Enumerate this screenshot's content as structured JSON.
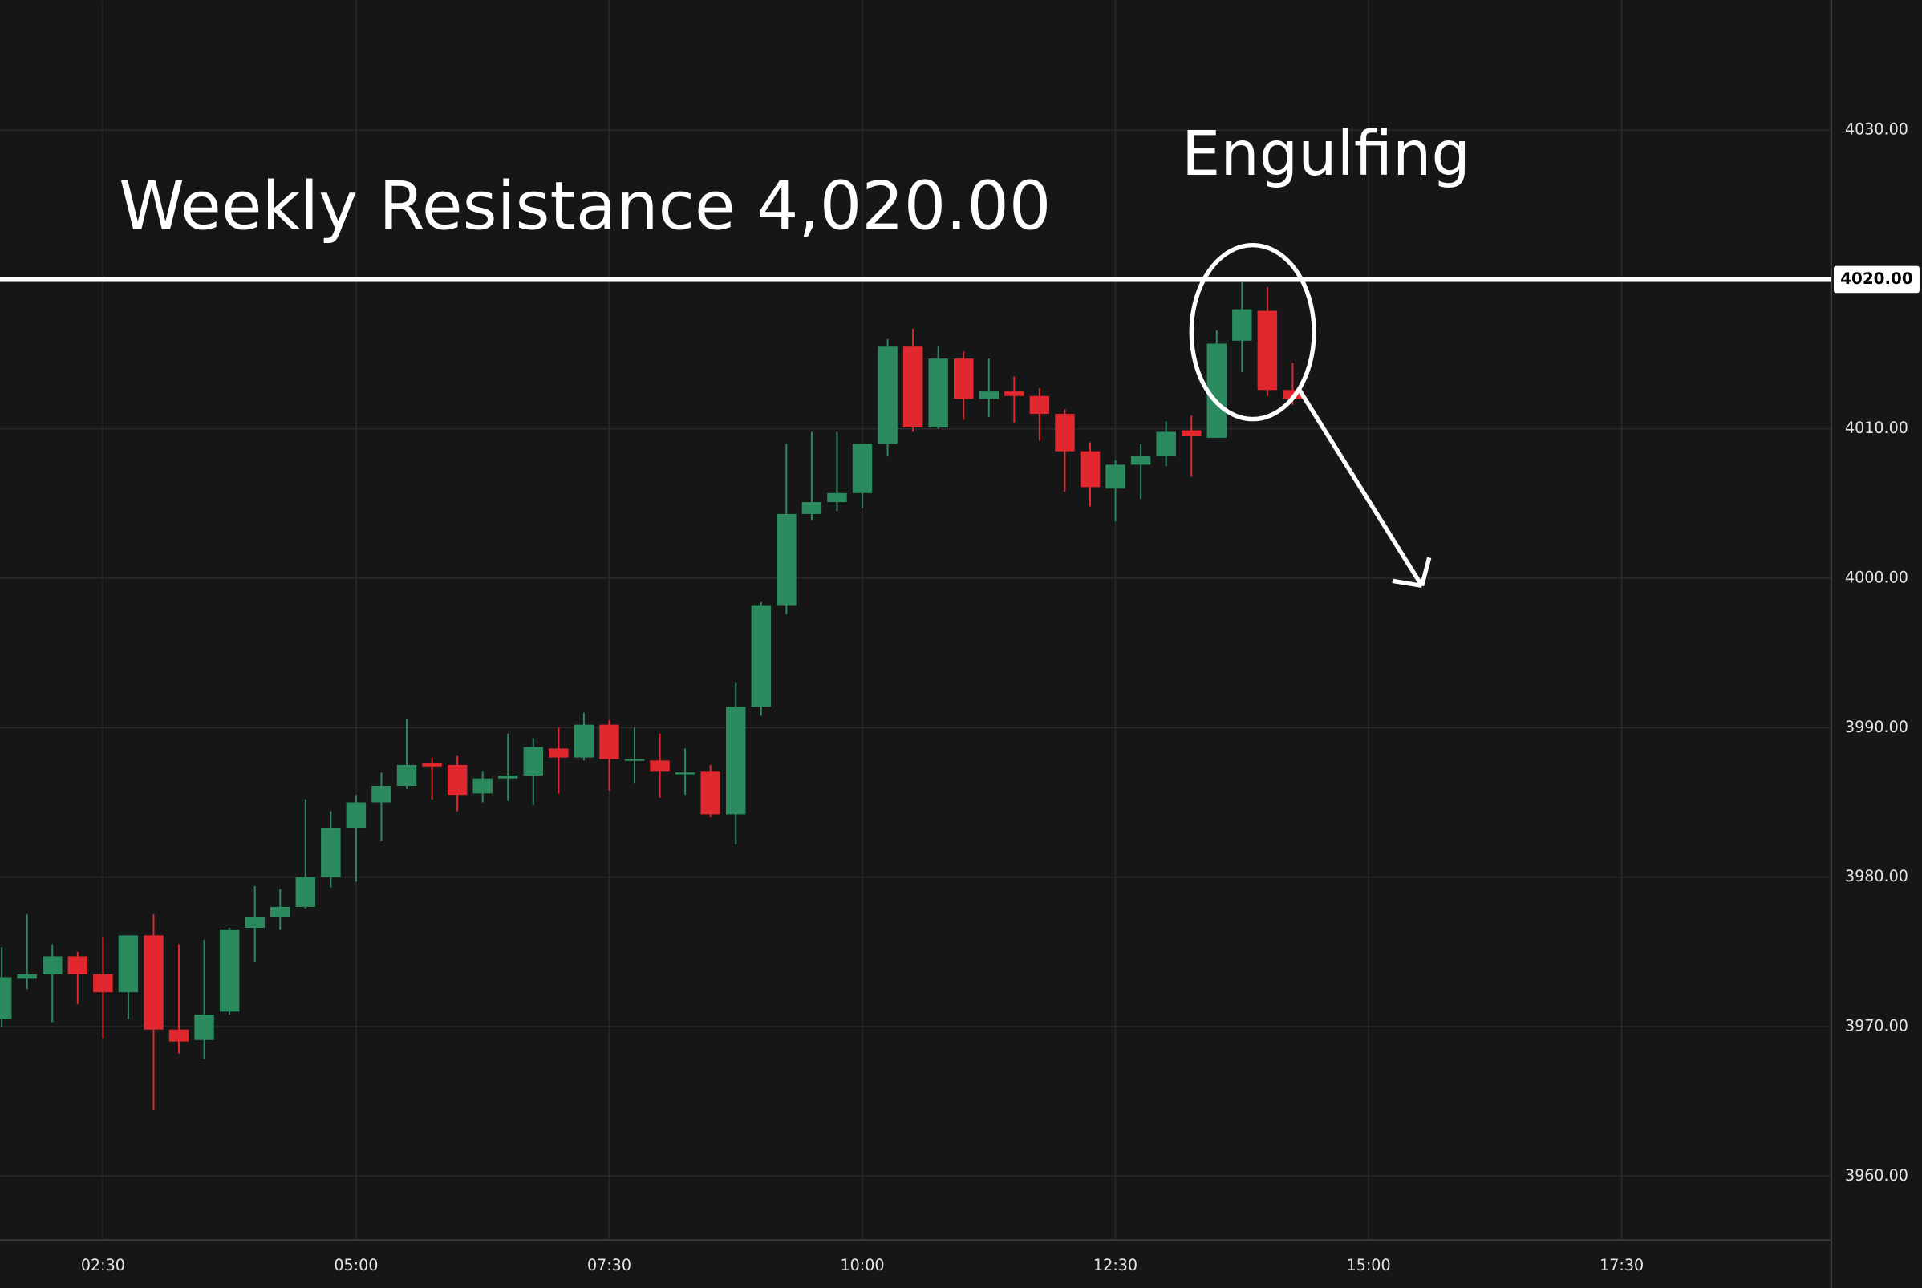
{
  "chart_data": {
    "type": "candlestick",
    "annotations": [
      "Weekly Resistance 4,020.00",
      "Engulfing"
    ],
    "resistance": {
      "value": 4020,
      "label": "4020.00"
    },
    "up_color": "#2b8a5e",
    "down_color": "#e2282f",
    "grid": true,
    "xlim": [
      1.483,
      19.57
    ],
    "ylim": [
      3955.7,
      4038.7
    ],
    "xticks": [
      {
        "value": 2.5,
        "label": "02:30"
      },
      {
        "value": 5,
        "label": "05:00"
      },
      {
        "value": 7.5,
        "label": "07:30"
      },
      {
        "value": 10,
        "label": "10:00"
      },
      {
        "value": 12.5,
        "label": "12:30"
      },
      {
        "value": 15,
        "label": "15:00"
      },
      {
        "value": 17.5,
        "label": "17:30"
      }
    ],
    "yticks": [
      {
        "value": 3960,
        "label": "3960.00"
      },
      {
        "value": 3970,
        "label": "3970.00"
      },
      {
        "value": 3980,
        "label": "3980.00"
      },
      {
        "value": 3990,
        "label": "3990.00"
      },
      {
        "value": 4000,
        "label": "4000.00"
      },
      {
        "value": 4010,
        "label": "4010.00"
      },
      {
        "value": 4020,
        "label": "4020.00"
      },
      {
        "value": 4030,
        "label": "4030.00"
      }
    ],
    "x": [
      1.5,
      1.75,
      2,
      2.25,
      2.5,
      2.75,
      3,
      3.25,
      3.5,
      3.75,
      4,
      4.25,
      4.5,
      4.75,
      5,
      5.25,
      5.5,
      5.75,
      6,
      6.25,
      6.5,
      6.75,
      7,
      7.25,
      7.5,
      7.75,
      8,
      8.25,
      8.5,
      8.75,
      9,
      9.25,
      9.5,
      9.75,
      10,
      10.25,
      10.5,
      10.75,
      11,
      11.25,
      11.5,
      11.75,
      12,
      12.25,
      12.5,
      12.75,
      13,
      13.25,
      13.5,
      13.75,
      14,
      14.25
    ],
    "open": [
      3970.5,
      3973.2,
      3973.5,
      3974.7,
      3973.5,
      3972.3,
      3976.1,
      3969.8,
      3969.1,
      3971,
      3976.6,
      3977.3,
      3978,
      3980,
      3983.3,
      3985,
      3986.1,
      3987.6,
      3987.5,
      3985.6,
      3986.6,
      3986.8,
      3988.6,
      3988,
      3990.2,
      3987.8,
      3987.8,
      3987,
      3987.1,
      3984.2,
      3991.4,
      3998.2,
      4004.3,
      4005.1,
      4005.7,
      4009,
      4015.5,
      4010.1,
      4014.7,
      4012,
      4012.5,
      4012.2,
      4011,
      4008.5,
      4006,
      4007.6,
      4008.2,
      4009.9,
      4009.4,
      4015.9,
      4017.9,
      4012.6
    ],
    "high": [
      3975.3,
      3977.5,
      3975.5,
      3975,
      3976,
      3976.1,
      3977.5,
      3975.5,
      3975.8,
      3976.6,
      3979.4,
      3979.2,
      3985.2,
      3984.4,
      3985.5,
      3987,
      3990.6,
      3988,
      3988.1,
      3987.1,
      3989.6,
      3989.3,
      3990,
      3991,
      3990.5,
      3990,
      3989.6,
      3988.6,
      3987.5,
      3993,
      3998.4,
      4009,
      4009.8,
      4009.8,
      4009,
      4016,
      4016.7,
      4015.5,
      4015.2,
      4014.7,
      4013.5,
      4012.7,
      4011.3,
      4009.1,
      4007.9,
      4009,
      4010.5,
      4010.9,
      4016.6,
      4019.8,
      4019.5,
      4014.4
    ],
    "low": [
      3970,
      3972.5,
      3970.3,
      3971.5,
      3969.2,
      3970.5,
      3964.4,
      3968.2,
      3967.8,
      3970.8,
      3974.3,
      3976.5,
      3977.9,
      3979.3,
      3979.7,
      3982.4,
      3985.9,
      3985.2,
      3984.4,
      3985,
      3985.1,
      3984.8,
      3985.6,
      3987.8,
      3985.8,
      3986.3,
      3985.3,
      3985.5,
      3984,
      3982.2,
      3990.8,
      3997.6,
      4003.9,
      4004.5,
      4004.7,
      4008.2,
      4009.8,
      4010,
      4010.6,
      4010.8,
      4010.4,
      4009.2,
      4005.8,
      4004.8,
      4003.8,
      4005.3,
      4007.5,
      4006.8,
      4009.4,
      4013.8,
      4012.2,
      4011.6
    ],
    "close": [
      3973.3,
      3973.5,
      3974.7,
      3973.5,
      3972.3,
      3976.1,
      3969.8,
      3969,
      3970.8,
      3976.5,
      3977.3,
      3978,
      3980,
      3983.3,
      3985,
      3986.1,
      3987.5,
      3987.4,
      3985.5,
      3986.6,
      3986.8,
      3988.7,
      3988,
      3990.2,
      3987.9,
      3987.9,
      3987.1,
      3987,
      3984.2,
      3991.4,
      3998.2,
      4004.3,
      4005.1,
      4005.7,
      4009,
      4015.5,
      4010.1,
      4014.7,
      4012,
      4012.5,
      4012.2,
      4011,
      4008.5,
      4006.1,
      4007.6,
      4008.2,
      4009.8,
      4009.5,
      4015.7,
      4018,
      4012.6,
      4012
    ]
  }
}
